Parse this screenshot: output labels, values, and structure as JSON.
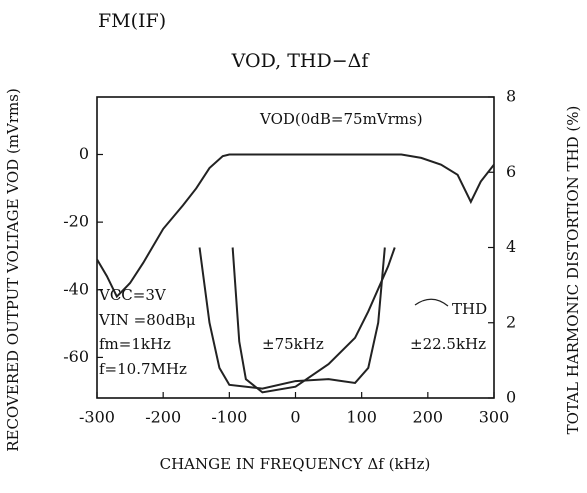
{
  "chart_data": {
    "type": "line",
    "title": "VOD,  THD−Δf",
    "subtitle": "FM(IF)",
    "x_label": "CHANGE IN FREQUENCY Δf (kHz)",
    "y_label": "RECOVERED OUTPUT VOLTAGE VOD (mVrms)",
    "y2_label": "TOTAL HARMONIC DISTORTION THD (%)",
    "xlim": [
      -300,
      300
    ],
    "xticks": [
      -300,
      -200,
      -100,
      0,
      100,
      200,
      300
    ],
    "ylim": [
      -72,
      17
    ],
    "yticks": [
      0,
      -20,
      -40,
      -60
    ],
    "y2lim": [
      0,
      8
    ],
    "y2ticks": [
      0,
      2,
      4,
      6,
      8
    ],
    "grid": false,
    "annotations": [
      "VCC=3V",
      "VIN =80dBμ",
      "fm=1kHz",
      "f=10.7MHz",
      "THD"
    ],
    "series": [
      {
        "name": "VOD(0dB=75mVrms)",
        "color": "#222222",
        "x": [
          -300,
          -285,
          -270,
          -250,
          -230,
          -200,
          -170,
          -150,
          -130,
          -110,
          -100,
          120,
          160,
          190,
          220,
          245,
          265,
          280,
          300
        ],
        "values": [
          -31,
          -36,
          -42,
          -38,
          -32,
          -22,
          -15,
          -10,
          -4,
          -0.5,
          0,
          0,
          0,
          -1,
          -3,
          -6,
          -14,
          -8,
          -3
        ]
      },
      {
        "name": "±75kHz",
        "color": "#222222",
        "axis": "y2",
        "x": [
          -145,
          -130,
          -115,
          -100,
          -50,
          0,
          50,
          90,
          110,
          125,
          135
        ],
        "values": [
          4,
          2,
          0.8,
          0.35,
          0.25,
          0.45,
          0.5,
          0.4,
          0.8,
          2,
          4
        ]
      },
      {
        "name": "±22.5kHz",
        "color": "#222222",
        "axis": "y2",
        "x": [
          -95,
          -85,
          -75,
          -50,
          0,
          50,
          90,
          110,
          140,
          150
        ],
        "values": [
          4,
          1.5,
          0.5,
          0.15,
          0.3,
          0.9,
          1.6,
          2.3,
          3.5,
          4
        ]
      }
    ]
  }
}
